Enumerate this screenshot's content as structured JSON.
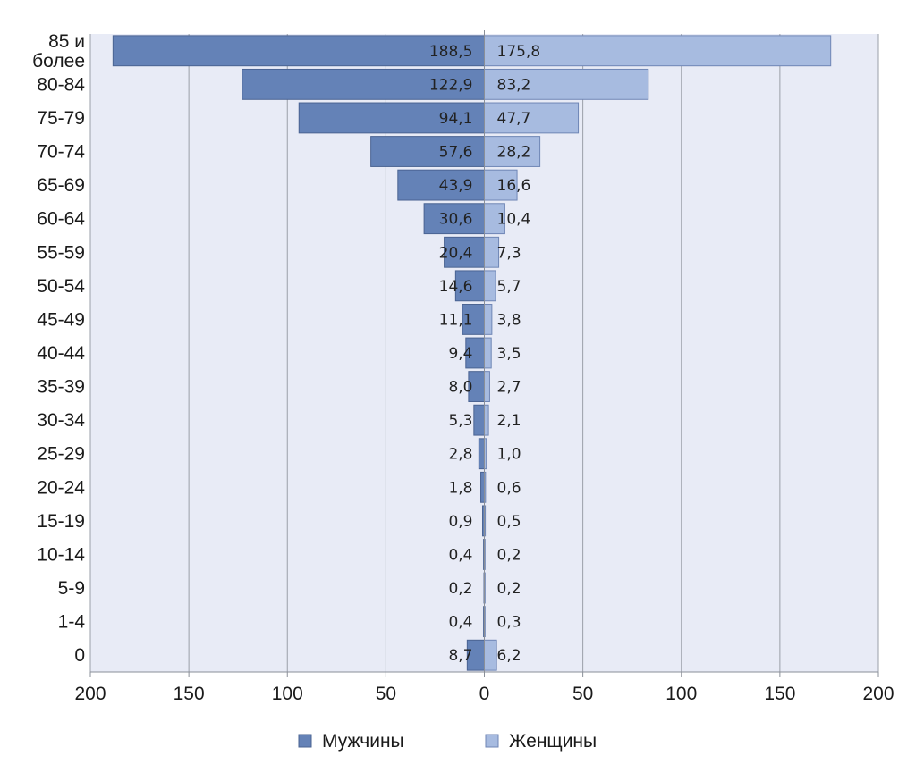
{
  "chart_data": {
    "type": "bar",
    "orientation": "horizontal",
    "layout": "population-pyramid",
    "categories": [
      "85 и более",
      "80-84",
      "75-79",
      "70-74",
      "65-69",
      "60-64",
      "55-59",
      "50-54",
      "45-49",
      "40-44",
      "35-39",
      "30-34",
      "25-29",
      "20-24",
      "15-19",
      "10-14",
      "5-9",
      "1-4",
      "0"
    ],
    "category_lines": [
      [
        "85 и",
        "более"
      ],
      [
        "80-84"
      ],
      [
        "75-79"
      ],
      [
        "70-74"
      ],
      [
        "65-69"
      ],
      [
        "60-64"
      ],
      [
        "55-59"
      ],
      [
        "50-54"
      ],
      [
        "45-49"
      ],
      [
        "40-44"
      ],
      [
        "35-39"
      ],
      [
        "30-34"
      ],
      [
        "25-29"
      ],
      [
        "20-24"
      ],
      [
        "15-19"
      ],
      [
        "10-14"
      ],
      [
        "5-9"
      ],
      [
        "1-4"
      ],
      [
        "0"
      ]
    ],
    "series": [
      {
        "name": "Мужчины",
        "side": "left",
        "color": "#6482b7",
        "values": [
          188.5,
          122.9,
          94.1,
          57.6,
          43.9,
          30.6,
          20.4,
          14.6,
          11.1,
          9.4,
          8.0,
          5.3,
          2.8,
          1.8,
          0.9,
          0.4,
          0.2,
          0.4,
          8.7
        ],
        "labels": [
          "188,5",
          "122,9",
          "94,1",
          "57,6",
          "43,9",
          "30,6",
          "20,4",
          "14,6",
          "11,1",
          "9,4",
          "8,0",
          "5,3",
          "2,8",
          "1,8",
          "0,9",
          "0,4",
          "0,2",
          "0,4",
          "8,7"
        ]
      },
      {
        "name": "Женщины",
        "side": "right",
        "color": "#a7bbe0",
        "values": [
          175.8,
          83.2,
          47.7,
          28.2,
          16.6,
          10.4,
          7.3,
          5.7,
          3.8,
          3.5,
          2.7,
          2.1,
          1.0,
          0.6,
          0.5,
          0.2,
          0.2,
          0.3,
          6.2
        ],
        "labels": [
          "175,8",
          "83,2",
          "47,7",
          "28,2",
          "16,6",
          "10,4",
          "7,3",
          "5,7",
          "3,8",
          "3,5",
          "2,7",
          "2,1",
          "1,0",
          "0,6",
          "0,5",
          "0,2",
          "0,2",
          "0,3",
          "6,2"
        ]
      }
    ],
    "xlim": [
      -200,
      200
    ],
    "xticks": [
      -200,
      -150,
      -100,
      -50,
      0,
      50,
      100,
      150,
      200
    ],
    "xtick_labels": [
      "200",
      "150",
      "100",
      "50",
      "0",
      "50",
      "100",
      "150",
      "200"
    ],
    "grid": "vertical",
    "plot_background": "#e8ebf6",
    "legend_position": "bottom-center",
    "title": "",
    "xlabel": "",
    "ylabel": ""
  }
}
